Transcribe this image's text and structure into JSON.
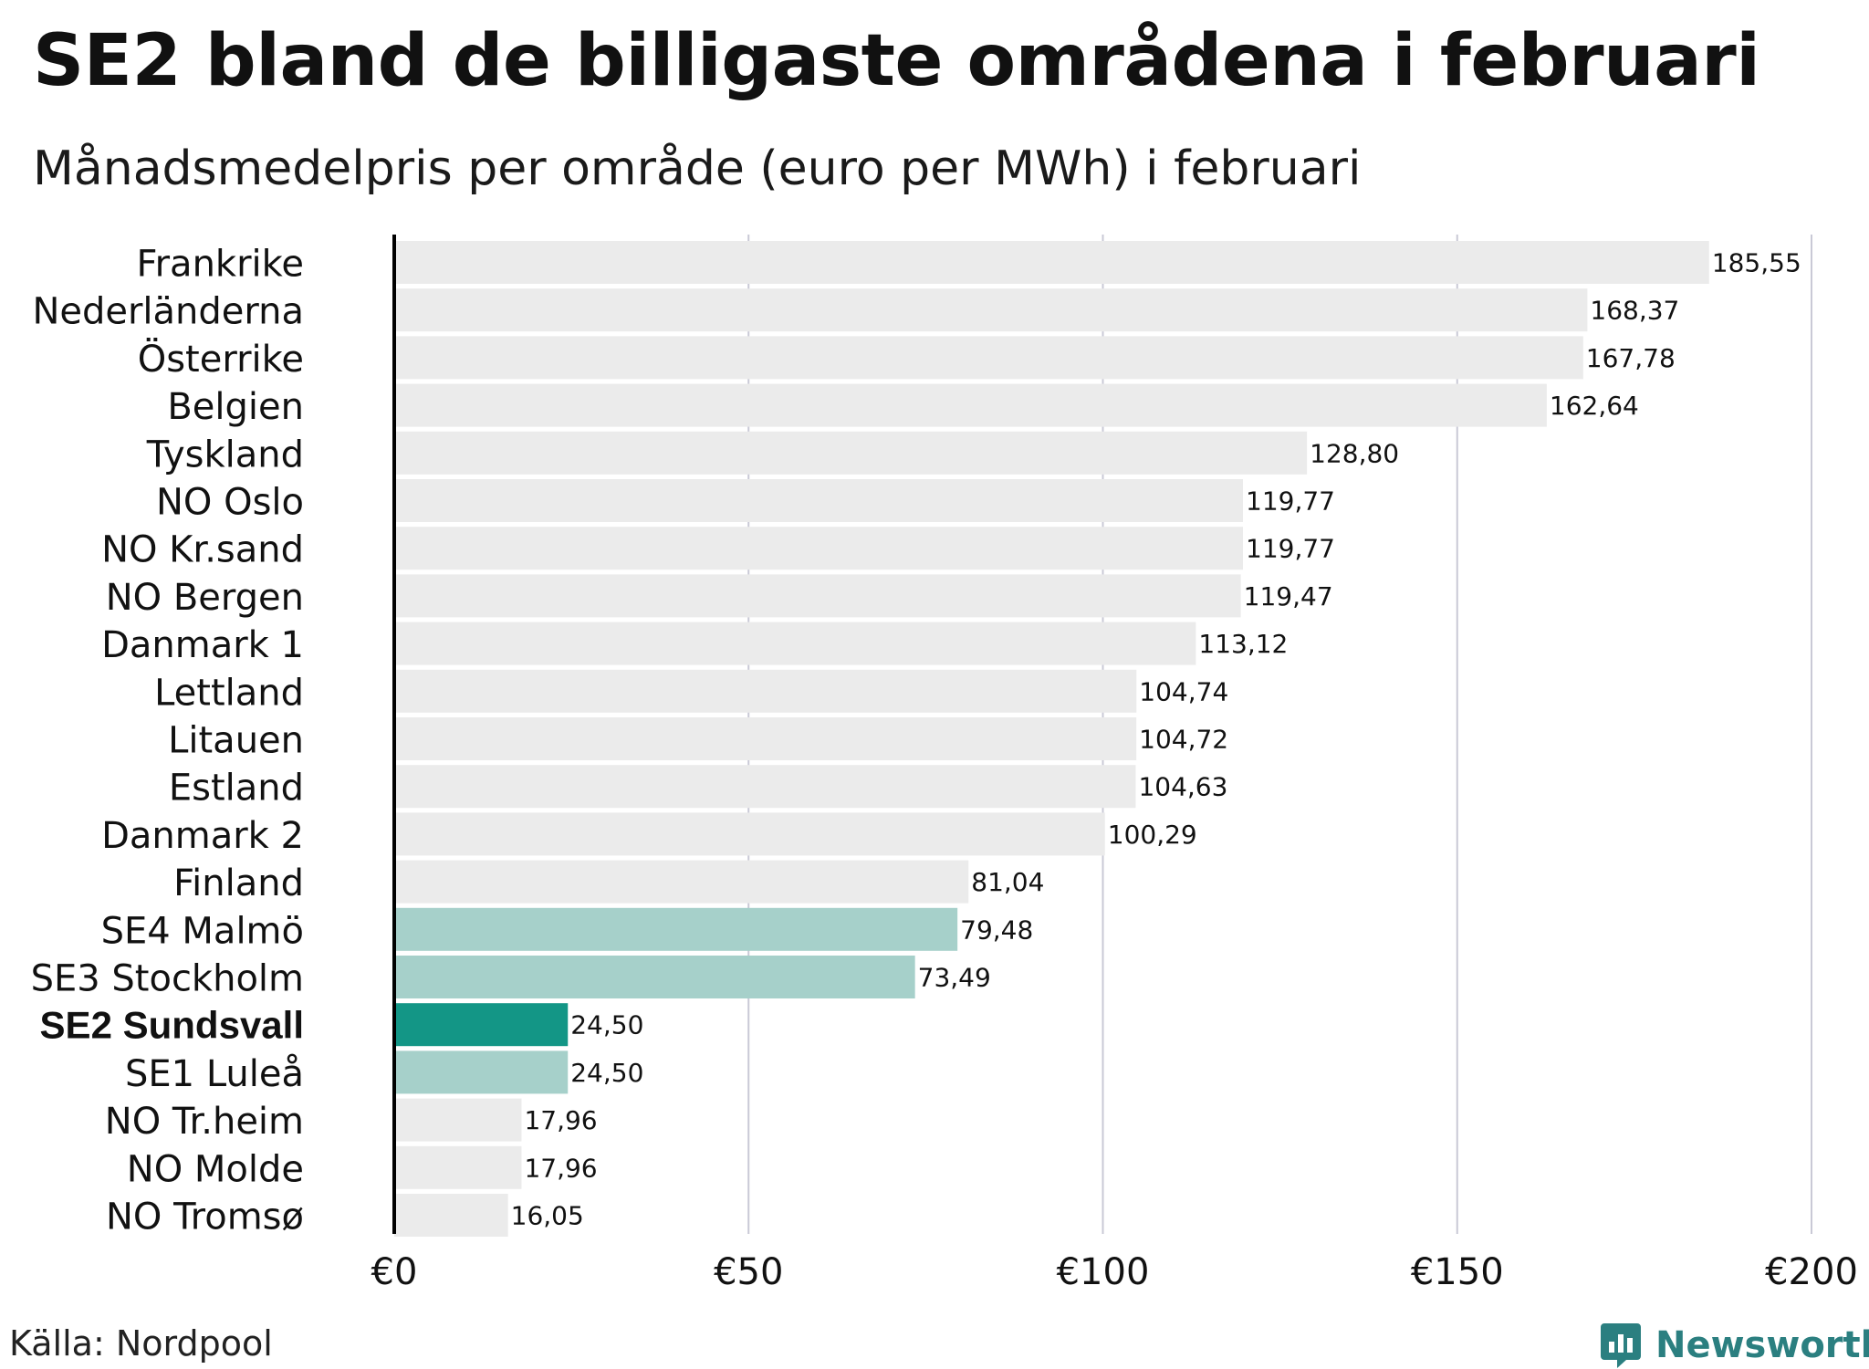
{
  "title": "SE2 bland de billigaste områdena i februari",
  "subtitle": "Månadsmedelpris per område (euro per MWh) i februari",
  "source": "Källa: Nordpool",
  "brand": "Newsworthy",
  "colors": {
    "default": "#ebebeb",
    "swedish": "#a6d0ca",
    "highlight": "#139686",
    "grid": "#c9c9d6",
    "axis": "#000000",
    "brand": "#2b7f80"
  },
  "chart_data": {
    "type": "bar",
    "orientation": "horizontal",
    "title": "SE2 bland de billigaste områdena i februari",
    "subtitle": "Månadsmedelpris per område (euro per MWh) i februari",
    "xlabel": "",
    "ylabel": "",
    "xlim": [
      0,
      200
    ],
    "ticks": [
      0,
      50,
      100,
      150,
      200
    ],
    "tick_labels": [
      "€0",
      "€50",
      "€100",
      "€150",
      "€200"
    ],
    "grid": true,
    "categories": [
      "Frankrike",
      "Nederländerna",
      "Österrike",
      "Belgien",
      "Tyskland",
      "NO Oslo",
      "NO Kr.sand",
      "NO Bergen",
      "Danmark 1",
      "Lettland",
      "Litauen",
      "Estland",
      "Danmark 2",
      "Finland",
      "SE4 Malmö",
      "SE3 Stockholm",
      "SE2 Sundsvall",
      "SE1 Luleå",
      "NO Tr.heim",
      "NO Molde",
      "NO Tromsø"
    ],
    "values": [
      185.55,
      168.37,
      167.78,
      162.64,
      128.8,
      119.77,
      119.77,
      119.47,
      113.12,
      104.74,
      104.72,
      104.63,
      100.29,
      81.04,
      79.48,
      73.49,
      24.5,
      24.5,
      17.96,
      17.96,
      16.05
    ],
    "value_labels": [
      "185,55",
      "168,37",
      "167,78",
      "162,64",
      "128,80",
      "119,77",
      "119,77",
      "119,47",
      "113,12",
      "104,74",
      "104,72",
      "104,63",
      "100,29",
      "81,04",
      "79,48",
      "73,49",
      "24,50",
      "24,50",
      "17,96",
      "17,96",
      "16,05"
    ],
    "groups": [
      "default",
      "default",
      "default",
      "default",
      "default",
      "default",
      "default",
      "default",
      "default",
      "default",
      "default",
      "default",
      "default",
      "default",
      "swedish",
      "swedish",
      "highlight",
      "swedish",
      "default",
      "default",
      "default"
    ]
  }
}
